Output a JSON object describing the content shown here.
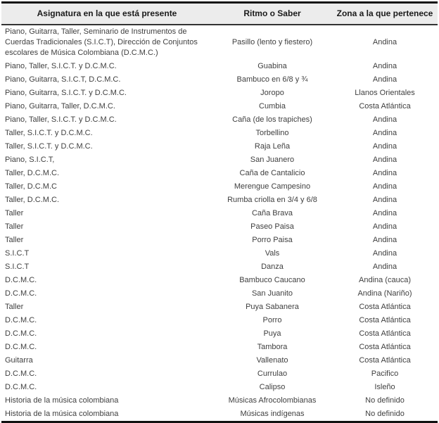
{
  "colors": {
    "header_background": "#ececec",
    "border": "#111111",
    "header_text": "#1a1a1a",
    "body_text": "#3f3f3f"
  },
  "table": {
    "columns": [
      "Asignatura en la que está presente",
      "Ritmo o Saber",
      "Zona a la que pertenece"
    ],
    "rows": [
      [
        "Piano, Guitarra, Taller, Seminario de Instrumentos de Cuerdas Tradicionales (S.I.C.T), Dirección de Conjuntos escolares de Música Colombiana (D.C.M.C.)",
        "Pasillo (lento y fiestero)",
        "Andina"
      ],
      [
        "Piano, Taller, S.I.C.T. y D.C.M.C.",
        "Guabina",
        "Andina"
      ],
      [
        "Piano, Guitarra, S.I.C.T, D.C.M.C.",
        "Bambuco en 6/8 y ¾",
        "Andina"
      ],
      [
        "Piano, Guitarra, S.I.C.T. y D.C.M.C.",
        "Joropo",
        "Llanos Orientales"
      ],
      [
        "Piano, Guitarra, Taller, D.C.M.C.",
        "Cumbia",
        "Costa Atlántica"
      ],
      [
        "Piano, Taller, S.I.C.T. y D.C.M.C.",
        "Caña (de los trapiches)",
        "Andina"
      ],
      [
        "Taller, S.I.C.T. y D.C.M.C.",
        "Torbellino",
        "Andina"
      ],
      [
        "Taller, S.I.C.T. y D.C.M.C.",
        "Raja Leña",
        "Andina"
      ],
      [
        "Piano, S.I.C.T,",
        "San Juanero",
        "Andina"
      ],
      [
        "Taller, D.C.M.C.",
        "Caña de Cantalicio",
        "Andina"
      ],
      [
        "Taller, D.C.M.C",
        "Merengue Campesino",
        "Andina"
      ],
      [
        "Taller, D.C.M.C.",
        "Rumba criolla en 3/4 y 6/8",
        "Andina"
      ],
      [
        "Taller",
        "Caña Brava",
        "Andina"
      ],
      [
        "Taller",
        "Paseo Paisa",
        "Andina"
      ],
      [
        "Taller",
        "Porro Paisa",
        "Andina"
      ],
      [
        "S.I.C.T",
        "Vals",
        "Andina"
      ],
      [
        "S.I.C.T",
        "Danza",
        "Andina"
      ],
      [
        "D.C.M.C.",
        "Bambuco Caucano",
        "Andina (cauca)"
      ],
      [
        "D.C.M.C.",
        "San Juanito",
        "Andina (Nariño)"
      ],
      [
        "Taller",
        "Puya Sabanera",
        "Costa Atlántica"
      ],
      [
        "D.C.M.C.",
        "Porro",
        "Costa Atlántica"
      ],
      [
        "D.C.M.C.",
        "Puya",
        "Costa Atlántica"
      ],
      [
        "D.C.M.C.",
        "Tambora",
        "Costa Atlántica"
      ],
      [
        "Guitarra",
        "Vallenato",
        "Costa Atlántica"
      ],
      [
        "D.C.M.C.",
        "Currulao",
        "Pacifico"
      ],
      [
        "D.C.M.C.",
        "Calipso",
        "Isleño"
      ],
      [
        "Historia de la música colombiana",
        "Músicas Afrocolombianas",
        "No definido"
      ],
      [
        "Historia de la música colombiana",
        "Músicas indígenas",
        "No definido"
      ]
    ]
  }
}
